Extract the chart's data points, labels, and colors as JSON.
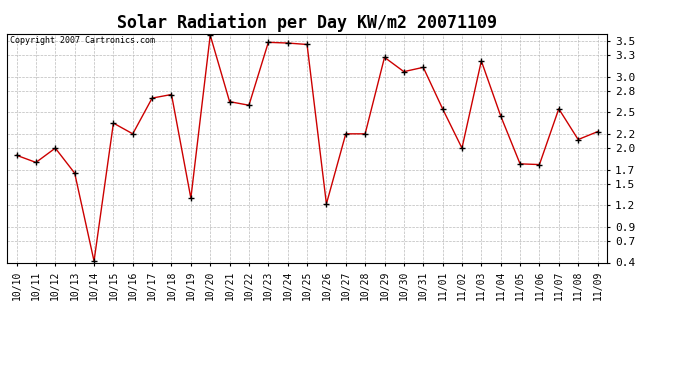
{
  "title": "Solar Radiation per Day KW/m2 20071109",
  "copyright": "Copyright 2007 Cartronics.com",
  "dates": [
    "10/10",
    "10/11",
    "10/12",
    "10/13",
    "10/14",
    "10/15",
    "10/16",
    "10/17",
    "10/18",
    "10/19",
    "10/20",
    "10/21",
    "10/22",
    "10/23",
    "10/24",
    "10/25",
    "10/26",
    "10/27",
    "10/28",
    "10/29",
    "10/30",
    "10/31",
    "11/01",
    "11/02",
    "11/03",
    "11/04",
    "11/05",
    "11/06",
    "11/07",
    "11/08",
    "11/09"
  ],
  "values": [
    1.9,
    1.8,
    2.0,
    1.65,
    0.42,
    2.35,
    2.2,
    2.7,
    2.75,
    1.3,
    3.58,
    2.65,
    2.6,
    3.48,
    3.47,
    3.45,
    1.22,
    2.2,
    2.2,
    3.27,
    3.07,
    3.13,
    2.55,
    2.0,
    3.22,
    2.45,
    1.78,
    1.77,
    2.55,
    2.12,
    2.23
  ],
  "line_color": "#cc0000",
  "marker": "+",
  "marker_color": "#000000",
  "bg_color": "#ffffff",
  "grid_color": "#bbbbbb",
  "ylim": [
    0.4,
    3.6
  ],
  "yticks": [
    0.4,
    0.7,
    0.9,
    1.2,
    1.5,
    1.7,
    2.0,
    2.2,
    2.5,
    2.8,
    3.0,
    3.3,
    3.5
  ],
  "title_fontsize": 12,
  "copyright_fontsize": 6,
  "tick_fontsize": 7,
  "ytick_fontsize": 8
}
